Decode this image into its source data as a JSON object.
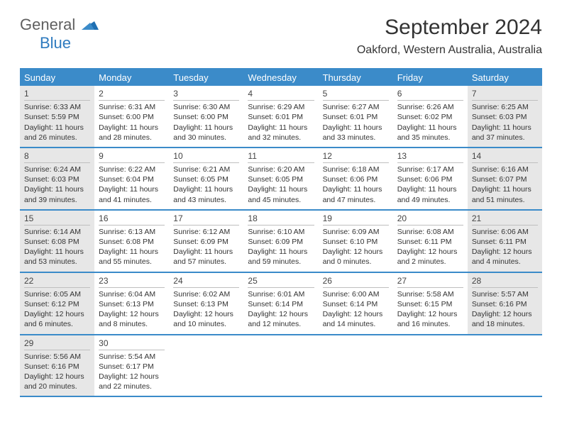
{
  "brand": {
    "part1": "General",
    "part2": "Blue"
  },
  "title": "September 2024",
  "location": "Oakford, Western Australia, Australia",
  "colors": {
    "accent": "#3b8bc9",
    "shade": "#e7e7e7",
    "text": "#333333",
    "logo_gray": "#5f5f5f",
    "logo_blue": "#2f7bbf"
  },
  "weekdays": [
    "Sunday",
    "Monday",
    "Tuesday",
    "Wednesday",
    "Thursday",
    "Friday",
    "Saturday"
  ],
  "weeks": [
    [
      {
        "n": "1",
        "shaded": true,
        "sr": "Sunrise: 6:33 AM",
        "ss": "Sunset: 5:59 PM",
        "d1": "Daylight: 11 hours",
        "d2": "and 26 minutes."
      },
      {
        "n": "2",
        "shaded": false,
        "sr": "Sunrise: 6:31 AM",
        "ss": "Sunset: 6:00 PM",
        "d1": "Daylight: 11 hours",
        "d2": "and 28 minutes."
      },
      {
        "n": "3",
        "shaded": false,
        "sr": "Sunrise: 6:30 AM",
        "ss": "Sunset: 6:00 PM",
        "d1": "Daylight: 11 hours",
        "d2": "and 30 minutes."
      },
      {
        "n": "4",
        "shaded": false,
        "sr": "Sunrise: 6:29 AM",
        "ss": "Sunset: 6:01 PM",
        "d1": "Daylight: 11 hours",
        "d2": "and 32 minutes."
      },
      {
        "n": "5",
        "shaded": false,
        "sr": "Sunrise: 6:27 AM",
        "ss": "Sunset: 6:01 PM",
        "d1": "Daylight: 11 hours",
        "d2": "and 33 minutes."
      },
      {
        "n": "6",
        "shaded": false,
        "sr": "Sunrise: 6:26 AM",
        "ss": "Sunset: 6:02 PM",
        "d1": "Daylight: 11 hours",
        "d2": "and 35 minutes."
      },
      {
        "n": "7",
        "shaded": true,
        "sr": "Sunrise: 6:25 AM",
        "ss": "Sunset: 6:03 PM",
        "d1": "Daylight: 11 hours",
        "d2": "and 37 minutes."
      }
    ],
    [
      {
        "n": "8",
        "shaded": true,
        "sr": "Sunrise: 6:24 AM",
        "ss": "Sunset: 6:03 PM",
        "d1": "Daylight: 11 hours",
        "d2": "and 39 minutes."
      },
      {
        "n": "9",
        "shaded": false,
        "sr": "Sunrise: 6:22 AM",
        "ss": "Sunset: 6:04 PM",
        "d1": "Daylight: 11 hours",
        "d2": "and 41 minutes."
      },
      {
        "n": "10",
        "shaded": false,
        "sr": "Sunrise: 6:21 AM",
        "ss": "Sunset: 6:05 PM",
        "d1": "Daylight: 11 hours",
        "d2": "and 43 minutes."
      },
      {
        "n": "11",
        "shaded": false,
        "sr": "Sunrise: 6:20 AM",
        "ss": "Sunset: 6:05 PM",
        "d1": "Daylight: 11 hours",
        "d2": "and 45 minutes."
      },
      {
        "n": "12",
        "shaded": false,
        "sr": "Sunrise: 6:18 AM",
        "ss": "Sunset: 6:06 PM",
        "d1": "Daylight: 11 hours",
        "d2": "and 47 minutes."
      },
      {
        "n": "13",
        "shaded": false,
        "sr": "Sunrise: 6:17 AM",
        "ss": "Sunset: 6:06 PM",
        "d1": "Daylight: 11 hours",
        "d2": "and 49 minutes."
      },
      {
        "n": "14",
        "shaded": true,
        "sr": "Sunrise: 6:16 AM",
        "ss": "Sunset: 6:07 PM",
        "d1": "Daylight: 11 hours",
        "d2": "and 51 minutes."
      }
    ],
    [
      {
        "n": "15",
        "shaded": true,
        "sr": "Sunrise: 6:14 AM",
        "ss": "Sunset: 6:08 PM",
        "d1": "Daylight: 11 hours",
        "d2": "and 53 minutes."
      },
      {
        "n": "16",
        "shaded": false,
        "sr": "Sunrise: 6:13 AM",
        "ss": "Sunset: 6:08 PM",
        "d1": "Daylight: 11 hours",
        "d2": "and 55 minutes."
      },
      {
        "n": "17",
        "shaded": false,
        "sr": "Sunrise: 6:12 AM",
        "ss": "Sunset: 6:09 PM",
        "d1": "Daylight: 11 hours",
        "d2": "and 57 minutes."
      },
      {
        "n": "18",
        "shaded": false,
        "sr": "Sunrise: 6:10 AM",
        "ss": "Sunset: 6:09 PM",
        "d1": "Daylight: 11 hours",
        "d2": "and 59 minutes."
      },
      {
        "n": "19",
        "shaded": false,
        "sr": "Sunrise: 6:09 AM",
        "ss": "Sunset: 6:10 PM",
        "d1": "Daylight: 12 hours",
        "d2": "and 0 minutes."
      },
      {
        "n": "20",
        "shaded": false,
        "sr": "Sunrise: 6:08 AM",
        "ss": "Sunset: 6:11 PM",
        "d1": "Daylight: 12 hours",
        "d2": "and 2 minutes."
      },
      {
        "n": "21",
        "shaded": true,
        "sr": "Sunrise: 6:06 AM",
        "ss": "Sunset: 6:11 PM",
        "d1": "Daylight: 12 hours",
        "d2": "and 4 minutes."
      }
    ],
    [
      {
        "n": "22",
        "shaded": true,
        "sr": "Sunrise: 6:05 AM",
        "ss": "Sunset: 6:12 PM",
        "d1": "Daylight: 12 hours",
        "d2": "and 6 minutes."
      },
      {
        "n": "23",
        "shaded": false,
        "sr": "Sunrise: 6:04 AM",
        "ss": "Sunset: 6:13 PM",
        "d1": "Daylight: 12 hours",
        "d2": "and 8 minutes."
      },
      {
        "n": "24",
        "shaded": false,
        "sr": "Sunrise: 6:02 AM",
        "ss": "Sunset: 6:13 PM",
        "d1": "Daylight: 12 hours",
        "d2": "and 10 minutes."
      },
      {
        "n": "25",
        "shaded": false,
        "sr": "Sunrise: 6:01 AM",
        "ss": "Sunset: 6:14 PM",
        "d1": "Daylight: 12 hours",
        "d2": "and 12 minutes."
      },
      {
        "n": "26",
        "shaded": false,
        "sr": "Sunrise: 6:00 AM",
        "ss": "Sunset: 6:14 PM",
        "d1": "Daylight: 12 hours",
        "d2": "and 14 minutes."
      },
      {
        "n": "27",
        "shaded": false,
        "sr": "Sunrise: 5:58 AM",
        "ss": "Sunset: 6:15 PM",
        "d1": "Daylight: 12 hours",
        "d2": "and 16 minutes."
      },
      {
        "n": "28",
        "shaded": true,
        "sr": "Sunrise: 5:57 AM",
        "ss": "Sunset: 6:16 PM",
        "d1": "Daylight: 12 hours",
        "d2": "and 18 minutes."
      }
    ],
    [
      {
        "n": "29",
        "shaded": true,
        "sr": "Sunrise: 5:56 AM",
        "ss": "Sunset: 6:16 PM",
        "d1": "Daylight: 12 hours",
        "d2": "and 20 minutes."
      },
      {
        "n": "30",
        "shaded": false,
        "sr": "Sunrise: 5:54 AM",
        "ss": "Sunset: 6:17 PM",
        "d1": "Daylight: 12 hours",
        "d2": "and 22 minutes."
      },
      {
        "empty": true
      },
      {
        "empty": true
      },
      {
        "empty": true
      },
      {
        "empty": true
      },
      {
        "empty": true
      }
    ]
  ]
}
